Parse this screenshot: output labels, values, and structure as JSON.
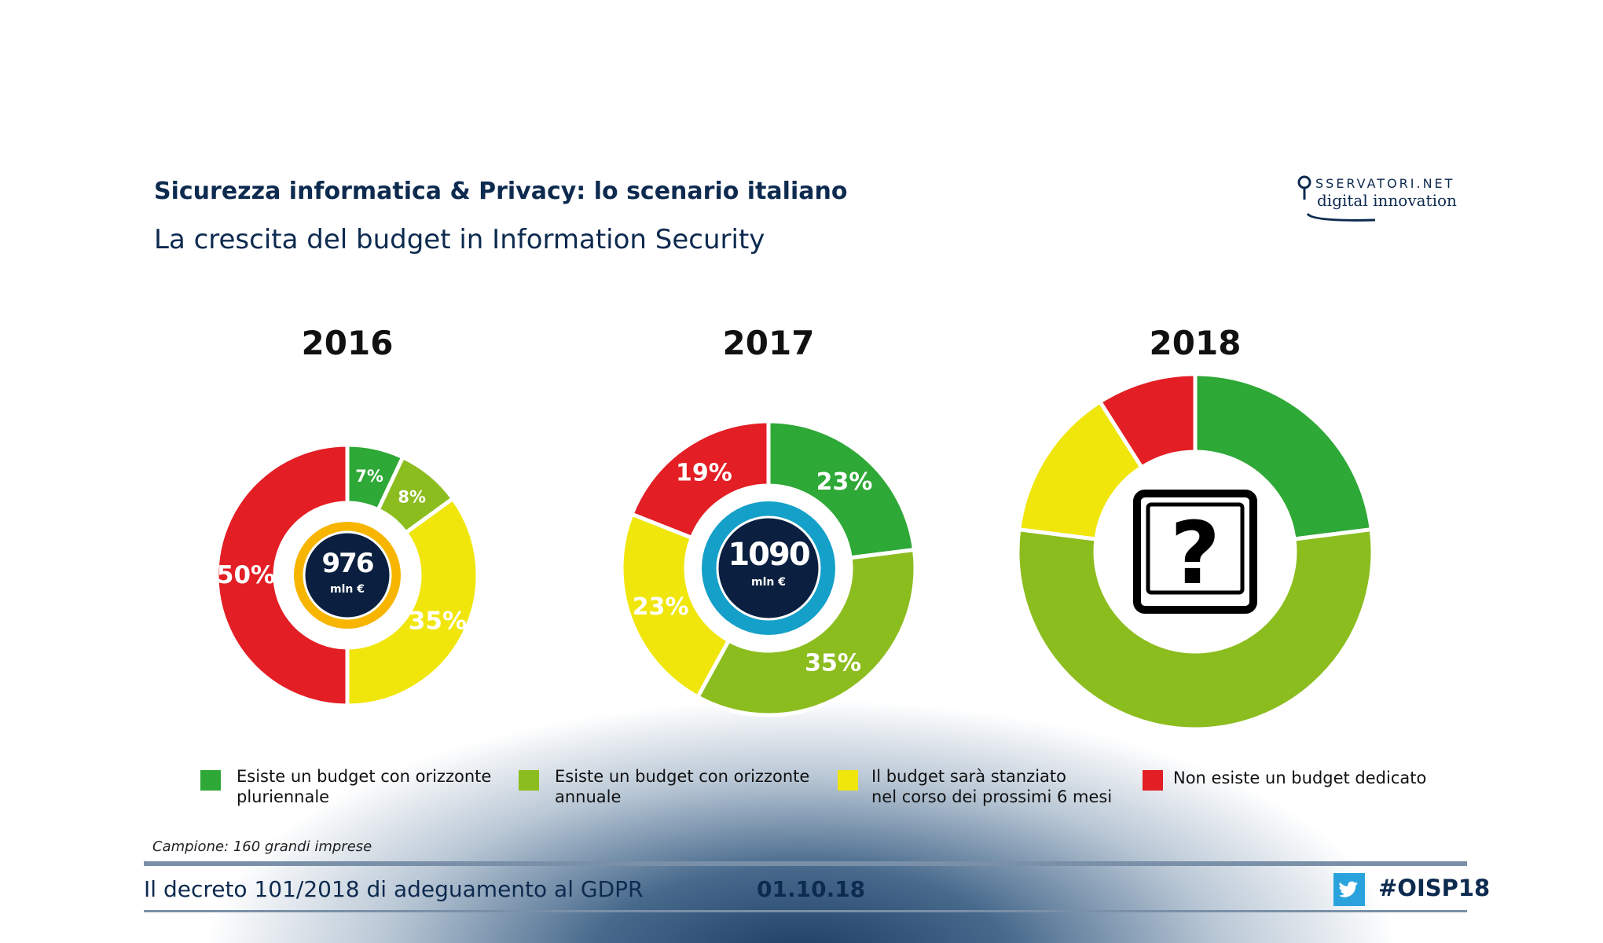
{
  "header": {
    "title": "Sicurezza informatica & Privacy: lo scenario italiano",
    "subtitle": "La crescita del budget in Information Security",
    "logo_text": "OSSERVATORI.NET digital innovation"
  },
  "colors": {
    "green": "#2ea836",
    "lightgreen": "#8cbd1f",
    "yellow": "#f0e60c",
    "red": "#e31e24",
    "navy": "#0b2040"
  },
  "chart_data": [
    {
      "type": "pie",
      "donut": true,
      "title": "2016",
      "center_value": "976",
      "center_unit": "mln €",
      "center_ring_color": "#f7b500",
      "categories": [
        "Esiste un budget con orizzonte pluriennale",
        "Esiste un budget con orizzonte annuale",
        "Il budget sarà stanziato nel corso dei prossimi 6 mesi",
        "Non esiste un budget dedicato"
      ],
      "values": [
        7,
        8,
        35,
        50
      ],
      "labels": [
        "7%",
        "8%",
        "35%",
        "50%"
      ]
    },
    {
      "type": "pie",
      "donut": true,
      "title": "2017",
      "center_value": "1090",
      "center_unit": "mln €",
      "center_ring_color": "#14a0c8",
      "categories": [
        "Esiste un budget con orizzonte pluriennale",
        "Esiste un budget con orizzonte annuale",
        "Il budget sarà stanziato nel corso dei prossimi 6 mesi",
        "Non esiste un budget dedicato"
      ],
      "values": [
        23,
        35,
        23,
        19
      ],
      "labels": [
        "23%",
        "35%",
        "23%",
        "19%"
      ]
    },
    {
      "type": "pie",
      "donut": true,
      "title": "2018",
      "center_icon": "question-mark-icon",
      "categories": [
        "Esiste un budget con orizzonte pluriennale",
        "Esiste un budget con orizzonte annuale",
        "Il budget sarà stanziato nel corso dei prossimi 6 mesi",
        "Non esiste un budget dedicato"
      ],
      "values": [
        23,
        54,
        14,
        9
      ],
      "labels": []
    }
  ],
  "legend": [
    {
      "line1": "Esiste un budget con orizzonte",
      "line2": "pluriennale",
      "color": "#2ea836"
    },
    {
      "line1": "Esiste un budget con orizzonte",
      "line2": "annuale",
      "color": "#8cbd1f"
    },
    {
      "line1": "Il budget sarà stanziato",
      "line2": "nel corso dei prossimi 6 mesi",
      "color": "#f0e60c"
    },
    {
      "line1": "Non esiste un budget dedicato",
      "line2": "",
      "color": "#e31e24"
    }
  ],
  "note": "Campione: 160 grandi imprese",
  "footer": {
    "title": "Il decreto 101/2018 di adeguamento al GDPR",
    "date": "01.10.18",
    "hashtag": "#OISP18",
    "icon": "twitter-icon"
  }
}
